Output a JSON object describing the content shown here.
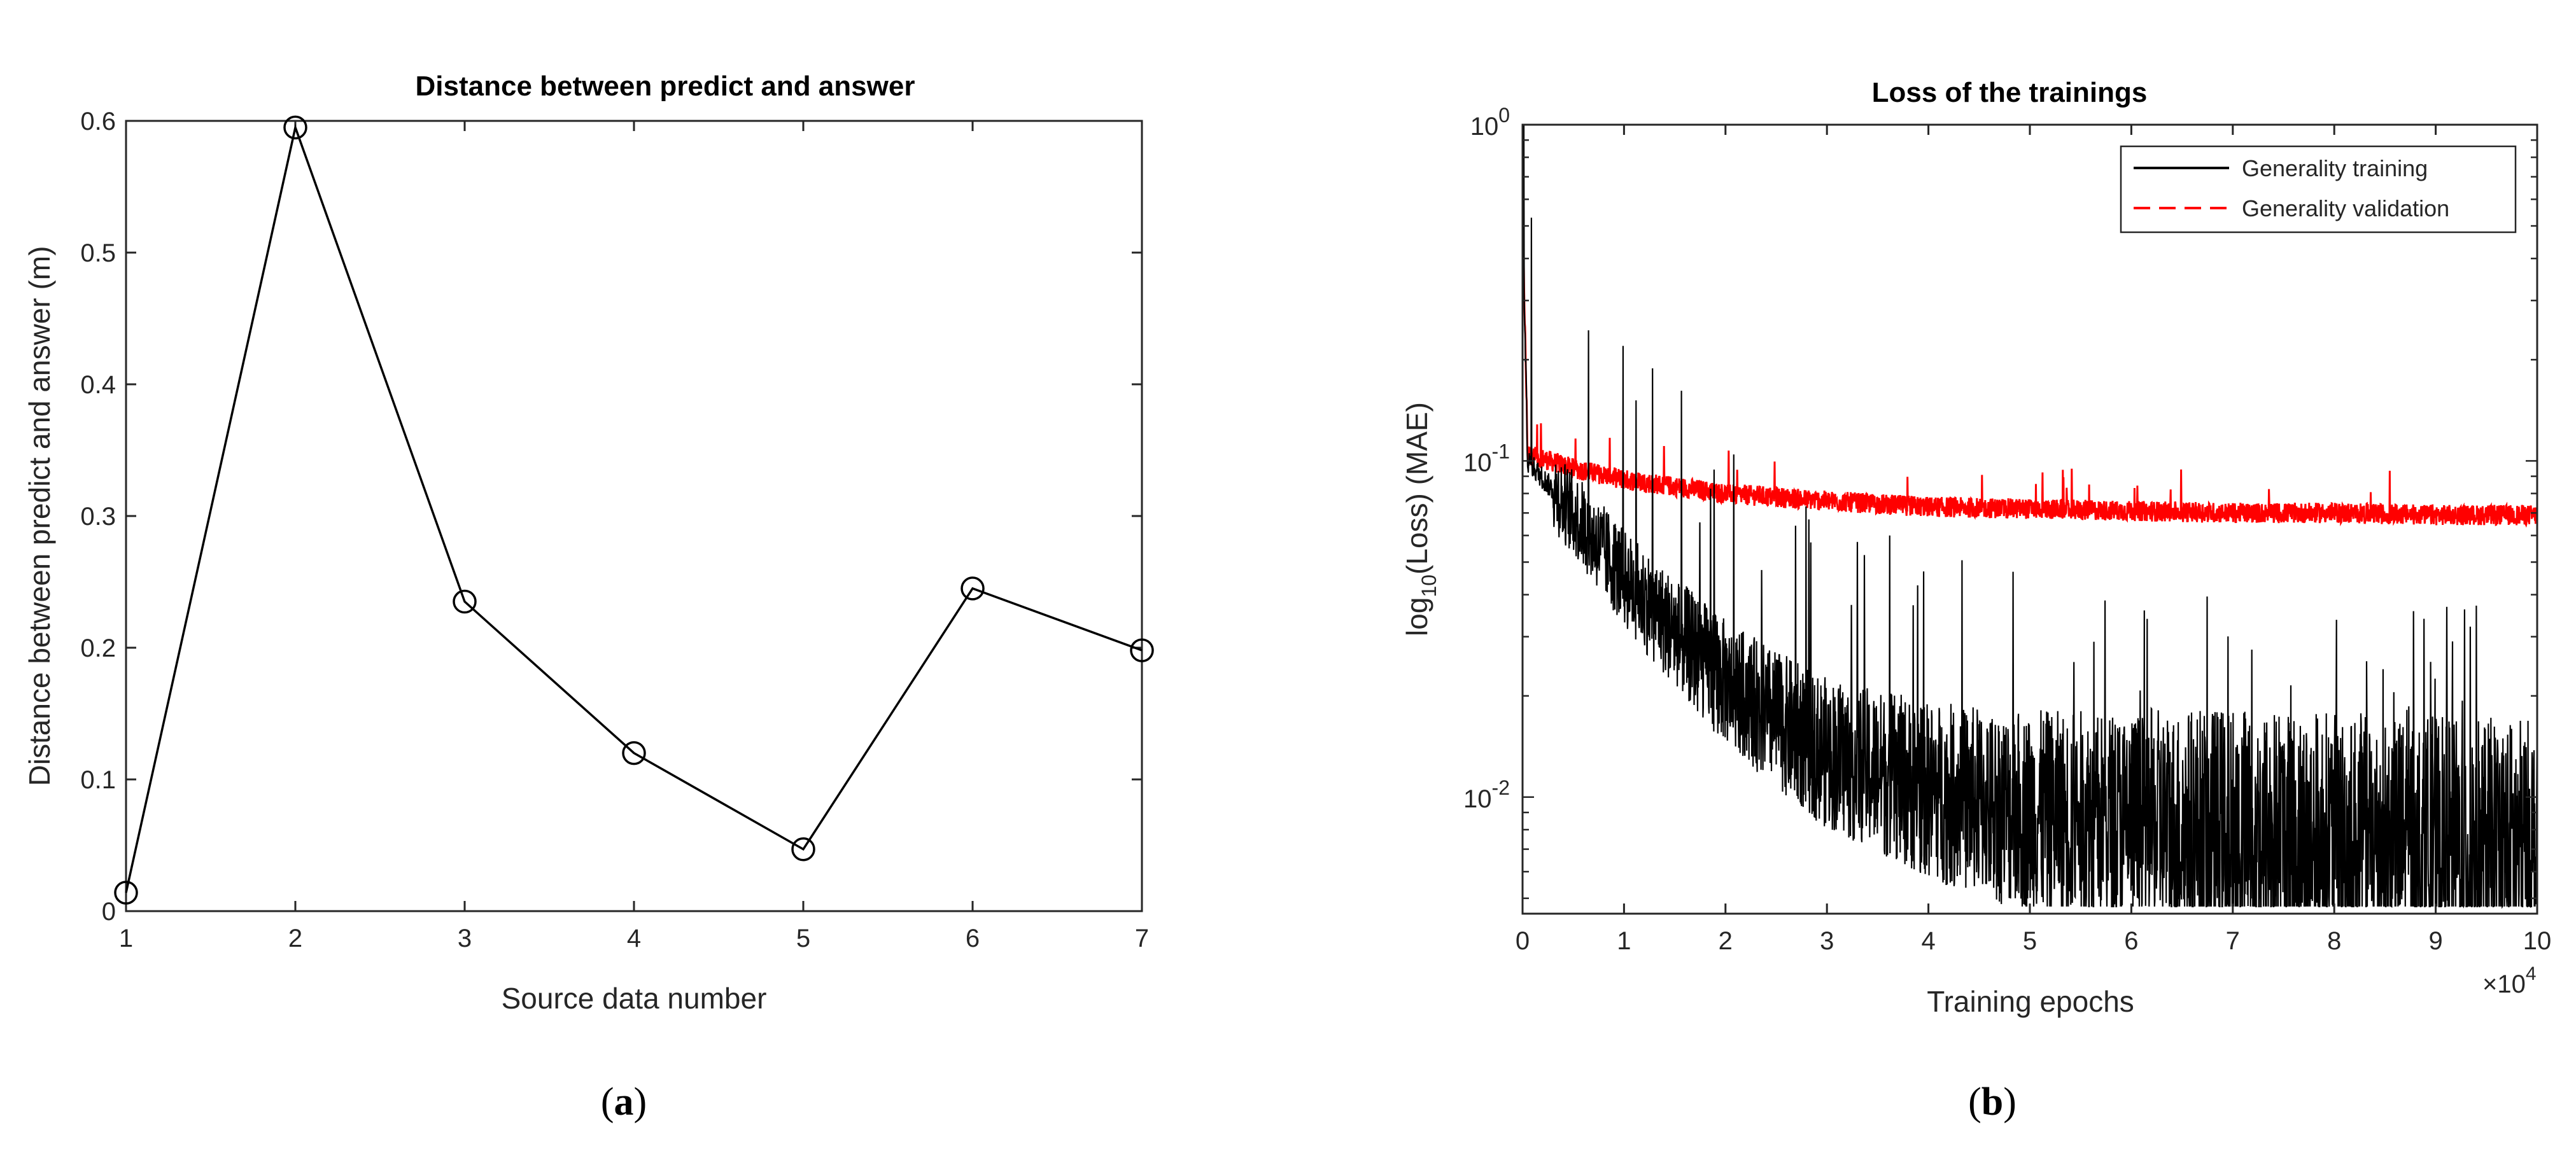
{
  "chart_data": [
    {
      "type": "line",
      "title": "Distance between predict and answer",
      "xlabel": "Source data number",
      "ylabel": "Distance between predict and answer (m)",
      "xlim": [
        1,
        7
      ],
      "ylim": [
        0,
        0.6
      ],
      "x_ticks": [
        "1",
        "2",
        "3",
        "4",
        "5",
        "6",
        "7"
      ],
      "y_ticks": [
        "0",
        "0.1",
        "0.2",
        "0.3",
        "0.4",
        "0.5",
        "0.6"
      ],
      "x": [
        1,
        2,
        3,
        4,
        5,
        6,
        7
      ],
      "values": [
        0.014,
        0.595,
        0.235,
        0.12,
        0.047,
        0.245,
        0.198
      ],
      "marker": "circle",
      "line_color": "#000000",
      "caption_letter": "a"
    },
    {
      "type": "line",
      "title": "Loss of the trainings",
      "xlabel": "Training epochs",
      "ylabel_base": "log",
      "ylabel_sub": "10",
      "ylabel_rest": "(Loss) (MAE)",
      "x_exponent_base": "×10",
      "x_exponent": "4",
      "xlim": [
        0,
        10
      ],
      "ylim": [
        0.0045,
        1
      ],
      "yscale": "log",
      "x_ticks": [
        "0",
        "1",
        "2",
        "3",
        "4",
        "5",
        "6",
        "7",
        "8",
        "9",
        "10"
      ],
      "y_ticks": [
        {
          "base": "10",
          "exp": "0",
          "value": 1
        },
        {
          "base": "10",
          "exp": "-1",
          "value": 0.1
        },
        {
          "base": "10",
          "exp": "-2",
          "value": 0.01
        }
      ],
      "legend_position": "top-right",
      "series": [
        {
          "name": "Generality training",
          "color": "#000000",
          "style": "solid",
          "x": [
            0,
            0.05,
            0.5,
            1,
            1.5,
            2,
            2.5,
            3,
            4,
            5,
            6,
            7,
            8,
            9,
            10
          ],
          "values": [
            0.55,
            0.1,
            0.07,
            0.045,
            0.031,
            0.022,
            0.017,
            0.0135,
            0.0105,
            0.009,
            0.0083,
            0.0078,
            0.0074,
            0.0071,
            0.007
          ]
        },
        {
          "name": "Generality validation",
          "color": "#ff0000",
          "style": "dashed",
          "x": [
            0,
            0.05,
            0.5,
            1,
            2,
            3,
            4,
            5,
            6,
            7,
            8,
            9,
            10
          ],
          "values": [
            0.55,
            0.105,
            0.095,
            0.088,
            0.08,
            0.076,
            0.073,
            0.072,
            0.071,
            0.07,
            0.07,
            0.069,
            0.069
          ]
        }
      ],
      "caption_letter": "b"
    }
  ]
}
